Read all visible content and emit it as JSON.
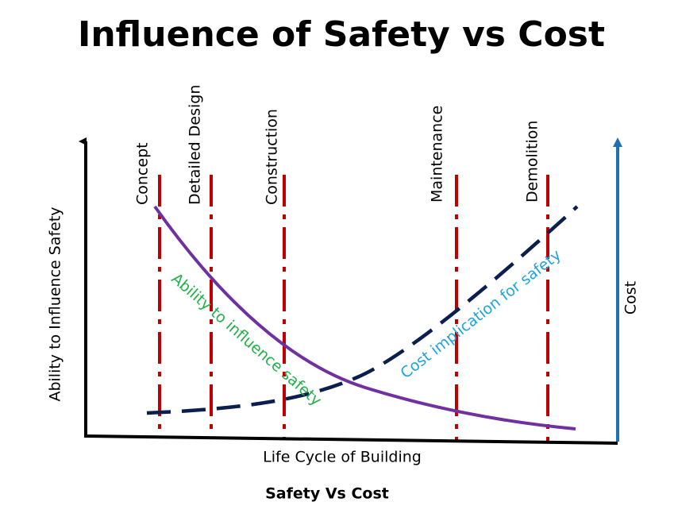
{
  "title": "Influence of Safety vs Cost",
  "y_axis_left": "Ability to Influence Safety",
  "y_axis_right": "Cost",
  "x_axis": "Life Cycle of Building",
  "caption": "Safety Vs Cost",
  "phases": [
    "Concept",
    "Detailed Design",
    "Construction",
    "Maintenance",
    "Demolition"
  ],
  "curves": {
    "ability": "Ability to influence safety",
    "cost": "Cost implication for safety"
  }
}
